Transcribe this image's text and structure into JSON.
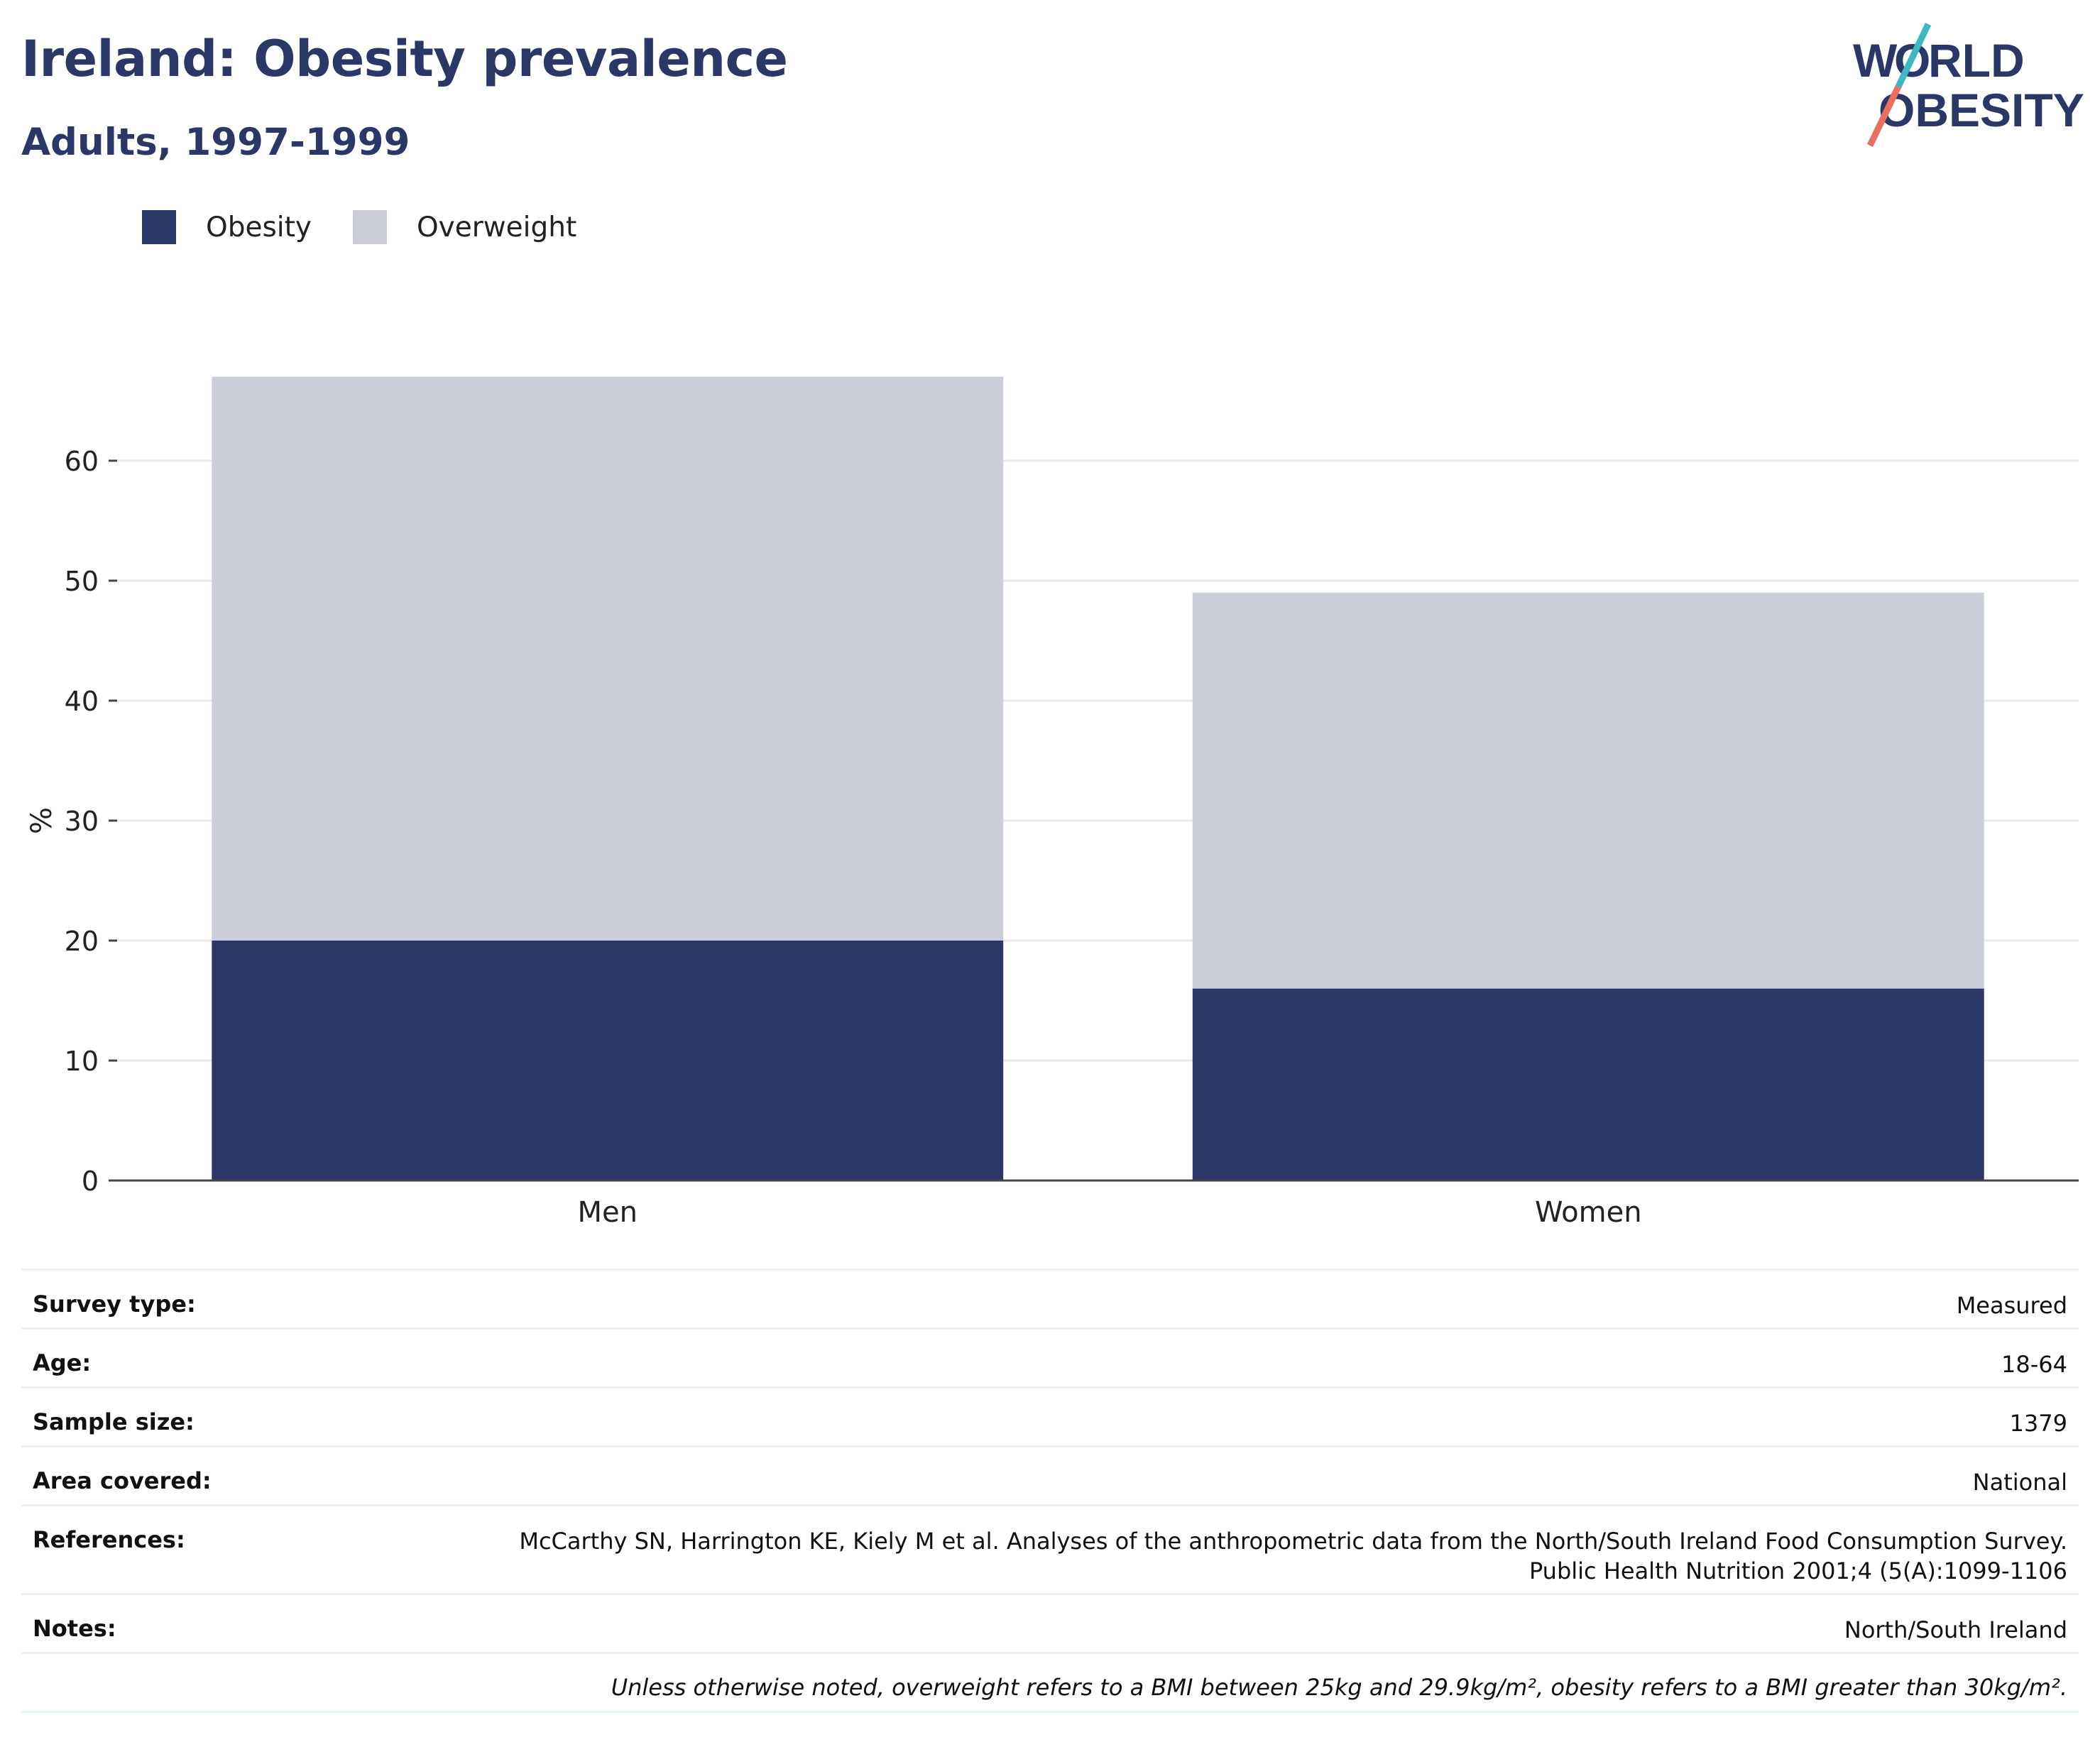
{
  "header": {
    "title": "Ireland: Obesity prevalence",
    "subtitle": "Adults, 1997-1999"
  },
  "logo": {
    "line1": "WORLD",
    "line2": "OBESITY",
    "colors": {
      "text": "#2b3766",
      "slash_top": "#3bb8c3",
      "slash_bottom": "#e8705f"
    }
  },
  "colors": {
    "obesity": "#2b3766",
    "overweight": "#cbcdd8",
    "axis": "#444444",
    "grid": "#ebebeb"
  },
  "chart_data": {
    "type": "bar",
    "stacked": true,
    "categories": [
      "Men",
      "Women"
    ],
    "series": [
      {
        "name": "Obesity",
        "values": [
          20,
          16
        ]
      },
      {
        "name": "Overweight",
        "values": [
          47,
          33
        ]
      }
    ],
    "ylabel": "%",
    "ylim": [
      0,
      70
    ],
    "yticks": [
      0,
      10,
      20,
      30,
      40,
      50,
      60
    ],
    "grid": true,
    "legend": "top-left"
  },
  "meta": {
    "rows": [
      {
        "label": "Survey type:",
        "value": "Measured"
      },
      {
        "label": "Age:",
        "value": "18-64"
      },
      {
        "label": "Sample size:",
        "value": "1379"
      },
      {
        "label": "Area covered:",
        "value": "National"
      },
      {
        "label": "References:",
        "value": "McCarthy SN, Harrington KE, Kiely M et al. Analyses of the anthropometric data from the North/South Ireland Food Consumption Survey.",
        "value2": "Public Health Nutrition 2001;4 (5(A):1099-1106"
      },
      {
        "label": "Notes:",
        "value": "North/South Ireland"
      }
    ],
    "footnote": "Unless otherwise noted, overweight refers to a BMI between 25kg and 29.9kg/m², obesity refers to a BMI greater than 30kg/m²."
  }
}
